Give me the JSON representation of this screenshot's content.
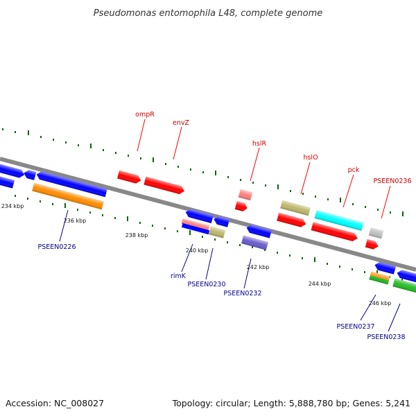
{
  "title": "Pseudomonas entomophila L48, complete genome",
  "footer": {
    "accession": "Accession: NC_008027",
    "topology": "Topology: circular; Length: 5,888,780 bp; Genes: 5,241"
  },
  "colors": {
    "backbone": "#888888",
    "top_label": "#cc0000",
    "bottom_label": "#00008b",
    "tick": "#006600",
    "blue": "#0000ff",
    "orange": "#ff8c00",
    "red": "#ff0000",
    "pink": "#ff7f7f",
    "khaki": "#bdb76b",
    "cyan": "#00ffff",
    "silver": "#c0c0c0",
    "slateblue": "#6a5acd",
    "green": "#22bb22"
  },
  "labels_top": [
    {
      "id": "ompR",
      "text": "ompR"
    },
    {
      "id": "envZ",
      "text": "envZ"
    },
    {
      "id": "hslR",
      "text": "hslR"
    },
    {
      "id": "hslO",
      "text": "hslO"
    },
    {
      "id": "pck",
      "text": "pck"
    },
    {
      "id": "PSEEN0236",
      "text": "PSEEN0236"
    }
  ],
  "labels_bottom": [
    {
      "id": "PSEEN0226",
      "text": "PSEEN0226"
    },
    {
      "id": "rimK",
      "text": "rimK"
    },
    {
      "id": "PSEEN0230",
      "text": "PSEEN0230"
    },
    {
      "id": "PSEEN0232",
      "text": "PSEEN0232"
    },
    {
      "id": "PSEEN0237",
      "text": "PSEEN0237"
    },
    {
      "id": "PSEEN0238",
      "text": "PSEEN0238"
    }
  ],
  "scale_labels": [
    "234 kbp",
    "236 kbp",
    "238 kbp",
    "240 kbp",
    "242 kbp",
    "244 kbp",
    "246 kbp"
  ]
}
